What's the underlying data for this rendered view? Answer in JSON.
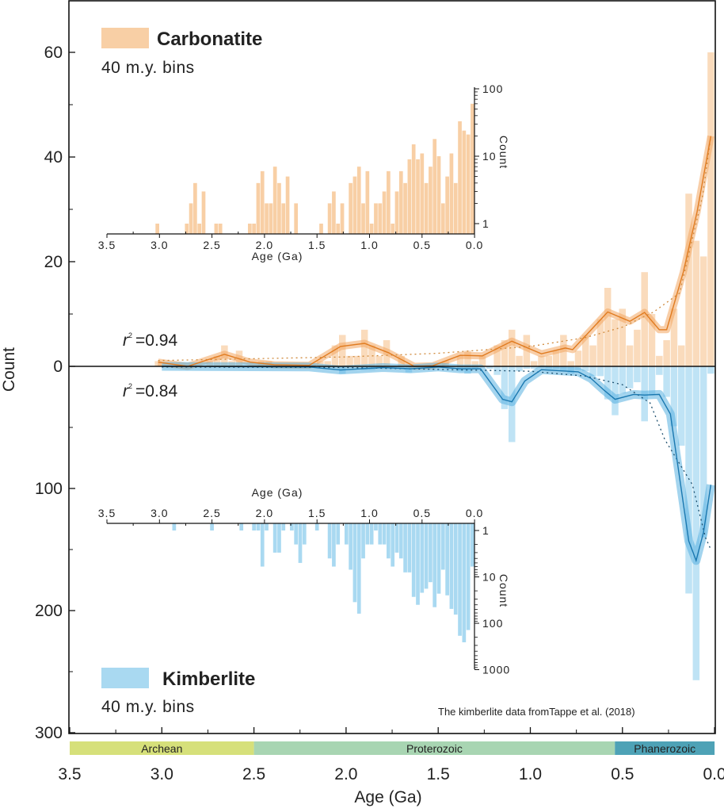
{
  "colors": {
    "carbonatite_bar": "#f8cfa5",
    "carbonatite_line": "#e07b20",
    "carbonatite_band": "#f2a660",
    "kimberlite_bar": "#a9d9f1",
    "kimberlite_line": "#1a78b0",
    "kimberlite_band": "#58b0e0",
    "archean": "#d6e07a",
    "proterozoic": "#a8d5b2",
    "phanerozoic": "#4ea2b6"
  },
  "legend": {
    "carbonatite": "Carbonatite",
    "carbonatite_bins": "40 m.y. bins",
    "kimberlite": "Kimberlite",
    "kimberlite_bins": "40 m.y. bins"
  },
  "annotations": {
    "r2_carbonatite_label": "r",
    "r2_carbonatite_value": "=0.94",
    "r2_kimberlite_label": "r",
    "r2_kimberlite_value": "=0.84",
    "r2_superscript": "2",
    "source_note": "The kimberlite data fromTappe et al. (2018)"
  },
  "timescale": [
    {
      "label": "Archean",
      "from": 3.5,
      "to": 2.5
    },
    {
      "label": "Proterozoic",
      "from": 2.5,
      "to": 0.541
    },
    {
      "label": "Phanerozoic",
      "from": 0.541,
      "to": 0.0
    }
  ],
  "chart_data": [
    {
      "type": "bar",
      "panel": "main",
      "xlabel": "Age (Ga)",
      "ylabel": "Count",
      "xlim": [
        3.5,
        0.0
      ],
      "x_ticks": [
        "3.5",
        "3.0",
        "2.5",
        "2.0",
        "1.5",
        "1.0",
        "0.5",
        "0.0"
      ],
      "y_ticks_up": [
        "0",
        "20",
        "40",
        "60"
      ],
      "y_ticks_down": [
        "100",
        "200",
        "300"
      ],
      "ylim_carbonatite": [
        0,
        70
      ],
      "ylim_kimberlite": [
        0,
        300
      ],
      "series": [
        {
          "name": "Carbonatite",
          "kind": "histogram",
          "direction": "up",
          "age": [
            3.02,
            2.74,
            2.7,
            2.66,
            2.62,
            2.58,
            2.46,
            2.42,
            2.14,
            2.1,
            2.06,
            2.02,
            1.98,
            1.94,
            1.9,
            1.86,
            1.82,
            1.78,
            1.7,
            1.46,
            1.38,
            1.34,
            1.3,
            1.26,
            1.18,
            1.14,
            1.1,
            1.06,
            1.02,
            0.98,
            0.94,
            0.9,
            0.86,
            0.82,
            0.78,
            0.74,
            0.7,
            0.66,
            0.62,
            0.58,
            0.54,
            0.5,
            0.46,
            0.42,
            0.38,
            0.34,
            0.3,
            0.26,
            0.22,
            0.18,
            0.14,
            0.1,
            0.06,
            0.02
          ],
          "count": [
            1,
            1,
            2,
            4,
            1,
            3,
            1,
            1,
            1,
            1,
            4,
            6,
            2,
            2,
            7,
            4,
            2,
            5,
            2,
            1,
            2,
            3,
            1,
            2,
            4,
            5,
            7,
            2,
            6,
            1,
            2,
            2,
            3,
            6,
            1,
            3,
            6,
            4,
            9,
            15,
            9,
            11,
            4,
            7,
            18,
            10,
            2,
            5,
            11,
            4,
            33,
            24,
            21,
            60
          ]
        },
        {
          "name": "Kimberlite",
          "kind": "histogram",
          "direction": "down",
          "age": [
            2.86,
            2.5,
            2.22,
            2.1,
            2.06,
            2.02,
            1.98,
            1.9,
            1.86,
            1.82,
            1.74,
            1.7,
            1.66,
            1.62,
            1.5,
            1.38,
            1.34,
            1.3,
            1.22,
            1.18,
            1.14,
            1.1,
            1.06,
            1.02,
            0.98,
            0.94,
            0.9,
            0.86,
            0.82,
            0.78,
            0.74,
            0.7,
            0.66,
            0.62,
            0.58,
            0.54,
            0.5,
            0.46,
            0.42,
            0.38,
            0.34,
            0.3,
            0.26,
            0.22,
            0.18,
            0.14,
            0.1,
            0.06,
            0.02
          ],
          "count": [
            1,
            1,
            1,
            1,
            1,
            6,
            1,
            3,
            3,
            1,
            1,
            2,
            5,
            2,
            1,
            4,
            6,
            2,
            2,
            7,
            35,
            62,
            4,
            2,
            2,
            1,
            2,
            2,
            4,
            6,
            3,
            4,
            8,
            8,
            27,
            40,
            22,
            18,
            13,
            45,
            23,
            7,
            25,
            49,
            65,
            186,
            257,
            140,
            6
          ]
        },
        {
          "kind": "smoothed_line",
          "of": "Carbonatite",
          "age": [
            3.02,
            2.86,
            2.66,
            2.52,
            2.39,
            2.2,
            2.03,
            1.9,
            1.77,
            1.63,
            1.53,
            1.38,
            1.26,
            1.1,
            0.94,
            0.81,
            0.77,
            0.58,
            0.46,
            0.38,
            0.3,
            0.26,
            0.17,
            0.095,
            0.02
          ],
          "count": [
            0.8,
            0,
            2.3,
            0.8,
            0.3,
            0.2,
            3.8,
            4.4,
            2.6,
            0,
            0.1,
            2.1,
            2,
            4.8,
            2.4,
            3.5,
            3.2,
            10.4,
            8.6,
            10.3,
            7,
            7,
            18,
            29.5,
            44
          ]
        },
        {
          "kind": "smoothed_line",
          "of": "Kimberlite",
          "age": [
            3.0,
            2.2,
            2.03,
            1.8,
            1.65,
            1.5,
            1.38,
            1.27,
            1.15,
            1.1,
            1.03,
            0.94,
            0.74,
            0.67,
            0.6,
            0.54,
            0.44,
            0.38,
            0.3,
            0.24,
            0.14,
            0.1,
            0.06,
            0.02
          ],
          "count": [
            0,
            0.5,
            3,
            1,
            2,
            0.5,
            2,
            2,
            27,
            29,
            12,
            2.7,
            4.5,
            10,
            19.5,
            27,
            23,
            23.5,
            23,
            39,
            143,
            159,
            136,
            97
          ]
        },
        {
          "kind": "fit_dotted",
          "of": "Carbonatite",
          "r2": 0.94,
          "age": [
            3.02,
            2.0,
            1.5,
            1.0,
            0.7,
            0.5,
            0.33,
            0.19,
            0.065,
            0.02
          ],
          "count": [
            1.1,
            1.8,
            2.5,
            3.8,
            5.5,
            7.5,
            10.4,
            14,
            32.6,
            44
          ]
        },
        {
          "kind": "fit_dotted",
          "of": "Kimberlite",
          "r2": 0.84,
          "age": [
            3.0,
            2.0,
            1.0,
            0.7,
            0.5,
            0.35,
            0.27,
            0.12,
            0.05,
            0.02
          ],
          "count": [
            0.5,
            1,
            4,
            8,
            15,
            30,
            60,
            97,
            140,
            150
          ]
        }
      ]
    },
    {
      "type": "bar",
      "panel": "inset-carbonatite",
      "xlabel": "Age (Ga)",
      "ylabel": "Count",
      "yscale": "log",
      "xlim": [
        3.5,
        0.0
      ],
      "ylim": [
        0.7,
        100
      ],
      "x_ticks": [
        "3.5",
        "3.0",
        "2.5",
        "2.0",
        "1.5",
        "1.0",
        "0.5",
        "0.0"
      ],
      "y_ticks": [
        "1",
        "10",
        "100"
      ],
      "series_ref": "Carbonatite"
    },
    {
      "type": "bar",
      "panel": "inset-kimberlite",
      "xlabel": "Age (Ga)",
      "ylabel": "Count",
      "yscale": "log",
      "yaxis_inverted": true,
      "xlim": [
        3.5,
        0.0
      ],
      "ylim": [
        0.7,
        1000
      ],
      "x_ticks": [
        "3.5",
        "3.0",
        "2.5",
        "2.0",
        "1.5",
        "1.0",
        "0.5",
        "0.0"
      ],
      "y_ticks": [
        "1",
        "10",
        "100",
        "1000"
      ],
      "series_ref": "Kimberlite"
    }
  ]
}
